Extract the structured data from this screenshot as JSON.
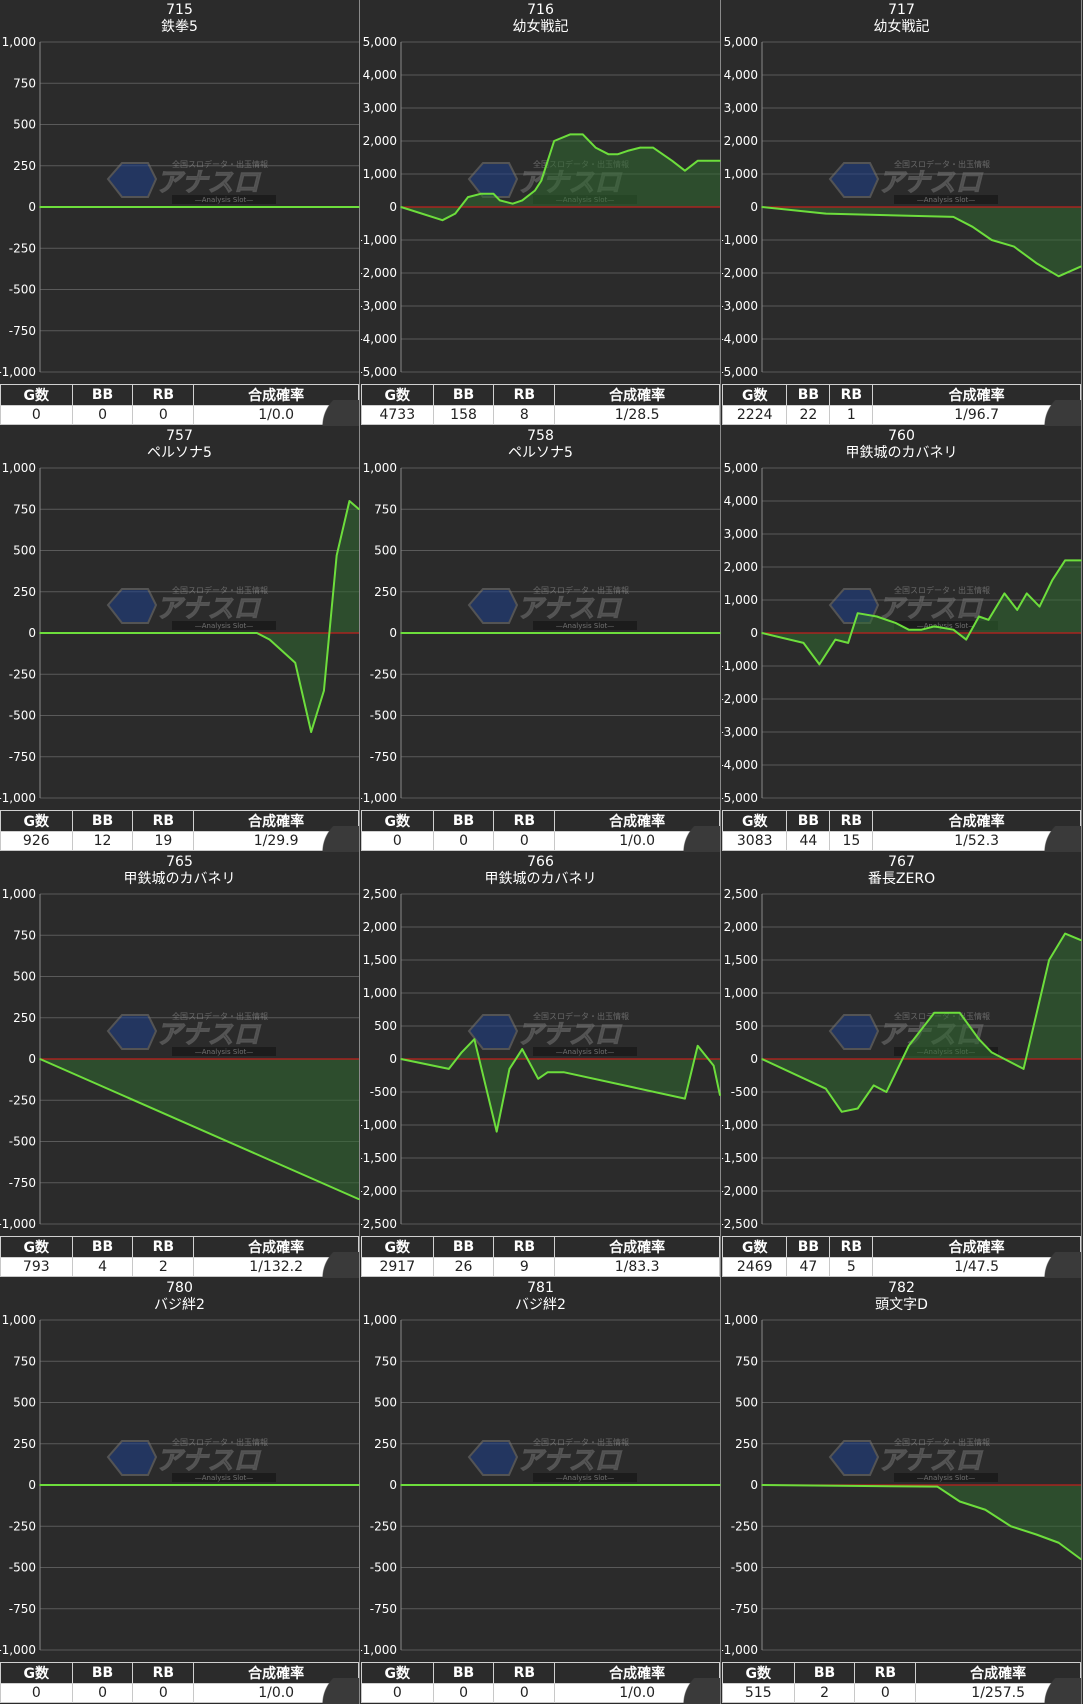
{
  "colors": {
    "line": "#6dde3c",
    "zero_line": "#c0201e",
    "grid": "#5a5a5a",
    "fill": "#2f6a2f"
  },
  "table_headers": {
    "games": "G数",
    "bb": "BB",
    "rb": "RB",
    "prob": "合成確率"
  },
  "watermark": {
    "main": "アナスロ",
    "sub": "—Analysis Slot—",
    "tagline": "全国スロデータ・出玉情報"
  },
  "chart_data": [
    {
      "type": "line",
      "title": "715",
      "subtitle": "鉄拳5",
      "ylim": [
        -1000,
        1000
      ],
      "yticks": [
        "1,000",
        "750",
        "500",
        "250",
        "0",
        "-250",
        "-500",
        "-750",
        "-1,000"
      ],
      "x": [
        0,
        1
      ],
      "y": [
        0,
        0
      ],
      "stats": {
        "games": "0",
        "bb": "0",
        "rb": "0",
        "prob": "1/0.0"
      }
    },
    {
      "type": "line",
      "title": "716",
      "subtitle": "幼女戦記",
      "ylim": [
        -5000,
        5000
      ],
      "yticks": [
        "5,000",
        "4,000",
        "3,000",
        "2,000",
        "1,000",
        "0",
        "-1,000",
        "-2,000",
        "-3,000",
        "-4,000",
        "-5,000"
      ],
      "x": [
        0,
        0.13,
        0.17,
        0.21,
        0.25,
        0.29,
        0.31,
        0.35,
        0.38,
        0.42,
        0.44,
        0.48,
        0.53,
        0.57,
        0.61,
        0.65,
        0.68,
        0.71,
        0.75,
        0.79,
        0.82,
        0.85,
        0.89,
        0.93,
        0.96,
        1.0
      ],
      "y": [
        0,
        -400,
        -200,
        300,
        400,
        400,
        200,
        100,
        200,
        500,
        800,
        2000,
        2200,
        2200,
        1800,
        1600,
        1600,
        1700,
        1800,
        1800,
        1600,
        1400,
        1100,
        1400,
        1400,
        1400
      ],
      "stats": {
        "games": "4733",
        "bb": "158",
        "rb": "8",
        "prob": "1/28.5"
      }
    },
    {
      "type": "line",
      "title": "717",
      "subtitle": "幼女戦記",
      "ylim": [
        -5000,
        5000
      ],
      "yticks": [
        "5,000",
        "4,000",
        "3,000",
        "2,000",
        "1,000",
        "0",
        "-1,000",
        "-2,000",
        "-3,000",
        "-4,000",
        "-5,000"
      ],
      "x": [
        0,
        0.2,
        0.6,
        0.66,
        0.72,
        0.79,
        0.86,
        0.93,
        1.0
      ],
      "y": [
        0,
        -200,
        -300,
        -600,
        -1000,
        -1200,
        -1700,
        -2100,
        -1800
      ],
      "stats": {
        "games": "2224",
        "bb": "22",
        "rb": "1",
        "prob": "1/96.7"
      }
    },
    {
      "type": "line",
      "title": "757",
      "subtitle": "ペルソナ5",
      "ylim": [
        -1000,
        1000
      ],
      "yticks": [
        "1,000",
        "750",
        "500",
        "250",
        "0",
        "-250",
        "-500",
        "-750",
        "-1,000"
      ],
      "x": [
        0,
        0.68,
        0.72,
        0.8,
        0.85,
        0.89,
        0.93,
        0.97,
        1.0
      ],
      "y": [
        0,
        0,
        -40,
        -180,
        -600,
        -350,
        470,
        800,
        750
      ],
      "stats": {
        "games": "926",
        "bb": "12",
        "rb": "19",
        "prob": "1/29.9"
      }
    },
    {
      "type": "line",
      "title": "758",
      "subtitle": "ペルソナ5",
      "ylim": [
        -1000,
        1000
      ],
      "yticks": [
        "1,000",
        "750",
        "500",
        "250",
        "0",
        "-250",
        "-500",
        "-750",
        "-1,000"
      ],
      "x": [
        0,
        1
      ],
      "y": [
        0,
        0
      ],
      "stats": {
        "games": "0",
        "bb": "0",
        "rb": "0",
        "prob": "1/0.0"
      }
    },
    {
      "type": "line",
      "title": "760",
      "subtitle": "甲鉄城のカバネリ",
      "ylim": [
        -5000,
        5000
      ],
      "yticks": [
        "5,000",
        "4,000",
        "3,000",
        "2,000",
        "1,000",
        "0",
        "-1,000",
        "-2,000",
        "-3,000",
        "-4,000",
        "-5,000"
      ],
      "x": [
        0,
        0.13,
        0.18,
        0.23,
        0.27,
        0.3,
        0.36,
        0.42,
        0.46,
        0.5,
        0.54,
        0.6,
        0.64,
        0.68,
        0.71,
        0.76,
        0.8,
        0.83,
        0.87,
        0.91,
        0.95,
        1.0
      ],
      "y": [
        0,
        -300,
        -950,
        -200,
        -300,
        600,
        500,
        300,
        100,
        100,
        200,
        100,
        -200,
        500,
        400,
        1200,
        700,
        1200,
        800,
        1600,
        2200,
        2200
      ],
      "stats": {
        "games": "3083",
        "bb": "44",
        "rb": "15",
        "prob": "1/52.3"
      }
    },
    {
      "type": "line",
      "title": "765",
      "subtitle": "甲鉄城のカバネリ",
      "ylim": [
        -1000,
        1000
      ],
      "yticks": [
        "1,000",
        "750",
        "500",
        "250",
        "0",
        "-250",
        "-500",
        "-750",
        "-1,000"
      ],
      "x": [
        0,
        1
      ],
      "y": [
        0,
        -850
      ],
      "stats": {
        "games": "793",
        "bb": "4",
        "rb": "2",
        "prob": "1/132.2"
      }
    },
    {
      "type": "line",
      "title": "766",
      "subtitle": "甲鉄城のカバネリ",
      "ylim": [
        -2500,
        2500
      ],
      "yticks": [
        "2,500",
        "2,000",
        "1,500",
        "1,000",
        "500",
        "0",
        "-500",
        "-1,000",
        "-1,500",
        "-2,000",
        "-2,500"
      ],
      "x": [
        0,
        0.15,
        0.19,
        0.23,
        0.3,
        0.34,
        0.38,
        0.43,
        0.46,
        0.51,
        0.89,
        0.93,
        0.98,
        1.0
      ],
      "y": [
        0,
        -150,
        100,
        300,
        -1100,
        -150,
        150,
        -300,
        -200,
        -200,
        -600,
        200,
        -100,
        -550
      ],
      "stats": {
        "games": "2917",
        "bb": "26",
        "rb": "9",
        "prob": "1/83.3"
      }
    },
    {
      "type": "line",
      "title": "767",
      "subtitle": "番長ZERO",
      "ylim": [
        -2500,
        2500
      ],
      "yticks": [
        "2,500",
        "2,000",
        "1,500",
        "1,000",
        "500",
        "0",
        "-500",
        "-1,000",
        "-1,500",
        "-2,000",
        "-2,500"
      ],
      "x": [
        0,
        0.2,
        0.25,
        0.3,
        0.35,
        0.39,
        0.46,
        0.54,
        0.62,
        0.68,
        0.72,
        0.82,
        0.9,
        0.95,
        1.0
      ],
      "y": [
        0,
        -450,
        -800,
        -750,
        -400,
        -500,
        200,
        700,
        700,
        300,
        100,
        -150,
        1500,
        1900,
        1800
      ],
      "stats": {
        "games": "2469",
        "bb": "47",
        "rb": "5",
        "prob": "1/47.5"
      }
    },
    {
      "type": "line",
      "title": "780",
      "subtitle": "バジ絆2",
      "ylim": [
        -1000,
        1000
      ],
      "yticks": [
        "1,000",
        "750",
        "500",
        "250",
        "0",
        "-250",
        "-500",
        "-750",
        "-1,000"
      ],
      "x": [
        0,
        1
      ],
      "y": [
        0,
        0
      ],
      "stats": {
        "games": "0",
        "bb": "0",
        "rb": "0",
        "prob": "1/0.0"
      }
    },
    {
      "type": "line",
      "title": "781",
      "subtitle": "バジ絆2",
      "ylim": [
        -1000,
        1000
      ],
      "yticks": [
        "1,000",
        "750",
        "500",
        "250",
        "0",
        "-250",
        "-500",
        "-750",
        "-1,000"
      ],
      "x": [
        0,
        1
      ],
      "y": [
        0,
        0
      ],
      "stats": {
        "games": "0",
        "bb": "0",
        "rb": "0",
        "prob": "1/0.0"
      }
    },
    {
      "type": "line",
      "title": "782",
      "subtitle": "頭文字D",
      "ylim": [
        -1000,
        1000
      ],
      "yticks": [
        "1,000",
        "750",
        "500",
        "250",
        "0",
        "-250",
        "-500",
        "-750",
        "-1,000"
      ],
      "x": [
        0,
        0.55,
        0.62,
        0.7,
        0.78,
        0.86,
        0.93,
        1.0
      ],
      "y": [
        0,
        -10,
        -100,
        -150,
        -250,
        -300,
        -350,
        -450
      ],
      "stats": {
        "games": "515",
        "bb": "2",
        "rb": "0",
        "prob": "1/257.5"
      }
    }
  ]
}
